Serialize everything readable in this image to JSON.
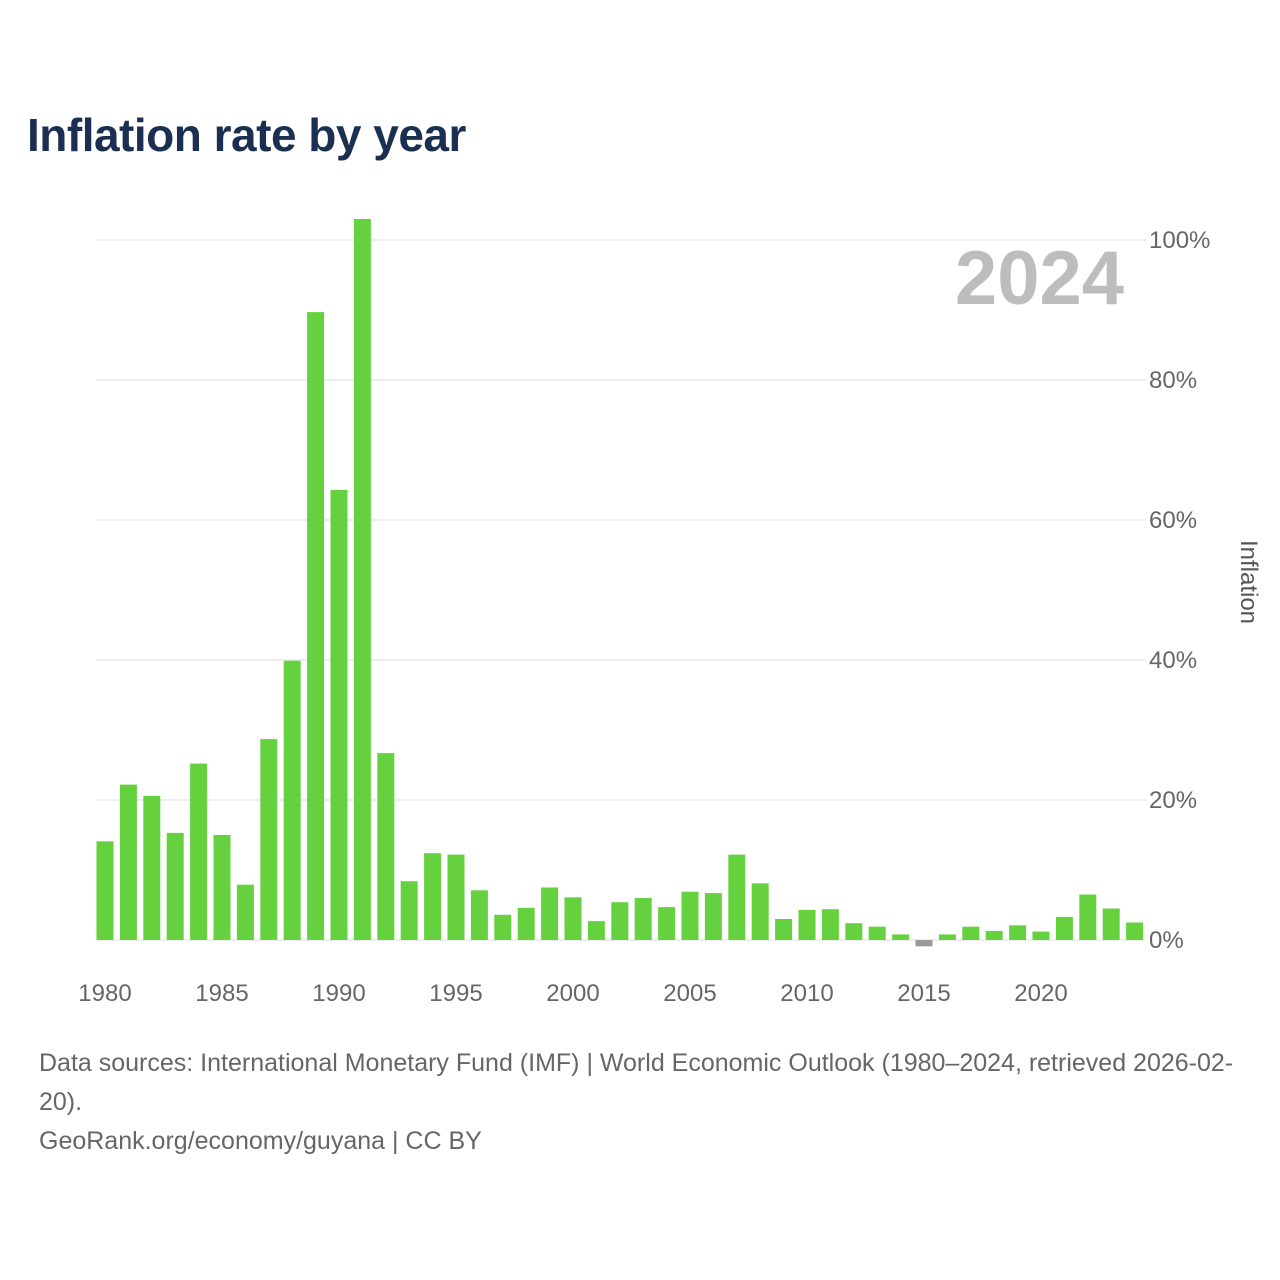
{
  "title": "Inflation rate by year",
  "footer": {
    "source": "Data sources: International Monetary Fund (IMF) | World Economic Outlook (1980–2024, retrieved 2026-02-20).",
    "credit": "GeoRank.org/economy/guyana | CC BY"
  },
  "colors": {
    "positive": "#66d13e",
    "negative": "#999999",
    "grid": "#e8e8e8",
    "title": "#1b2f52"
  },
  "chart_data": {
    "type": "bar",
    "title": "Inflation rate by year",
    "ylabel": "Inflation",
    "xlabel": "",
    "ylim": [
      0,
      103
    ],
    "y_ticks": [
      {
        "value": 0,
        "label": "0%"
      },
      {
        "value": 20,
        "label": "20%"
      },
      {
        "value": 40,
        "label": "40%"
      },
      {
        "value": 60,
        "label": "60%"
      },
      {
        "value": 80,
        "label": "80%"
      },
      {
        "value": 100,
        "label": "100%"
      }
    ],
    "x_ticks": [
      {
        "value": 1980,
        "label": "1980"
      },
      {
        "value": 1985,
        "label": "1985"
      },
      {
        "value": 1990,
        "label": "1990"
      },
      {
        "value": 1995,
        "label": "1995"
      },
      {
        "value": 2000,
        "label": "2000"
      },
      {
        "value": 2005,
        "label": "2005"
      },
      {
        "value": 2010,
        "label": "2010"
      },
      {
        "value": 2015,
        "label": "2015"
      },
      {
        "value": 2020,
        "label": "2020"
      }
    ],
    "year_label": "2024",
    "grid": true,
    "legend": "none",
    "categories": [
      1980,
      1981,
      1982,
      1983,
      1984,
      1985,
      1986,
      1987,
      1988,
      1989,
      1990,
      1991,
      1992,
      1993,
      1994,
      1995,
      1996,
      1997,
      1998,
      1999,
      2000,
      2001,
      2002,
      2003,
      2004,
      2005,
      2006,
      2007,
      2008,
      2009,
      2010,
      2011,
      2012,
      2013,
      2014,
      2015,
      2016,
      2017,
      2018,
      2019,
      2020,
      2021,
      2022,
      2023,
      2024
    ],
    "values": [
      14.1,
      22.2,
      20.6,
      15.3,
      25.2,
      15.0,
      7.9,
      28.7,
      39.9,
      89.7,
      64.3,
      103.0,
      26.7,
      8.4,
      12.4,
      12.2,
      7.1,
      3.6,
      4.6,
      7.5,
      6.1,
      2.7,
      5.4,
      6.0,
      4.7,
      6.9,
      6.7,
      12.2,
      8.1,
      3.0,
      4.3,
      4.4,
      2.4,
      1.9,
      0.8,
      -0.9,
      0.8,
      1.9,
      1.3,
      2.1,
      1.2,
      3.3,
      6.5,
      4.5,
      2.5
    ]
  }
}
